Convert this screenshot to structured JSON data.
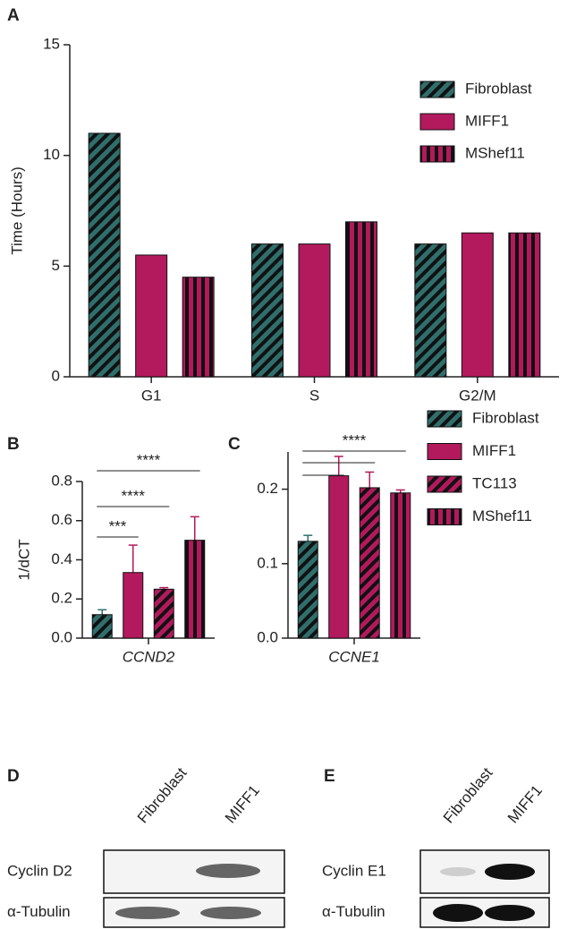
{
  "chart_data": [
    {
      "type": "bar",
      "panel": "A",
      "ylabel": "Time (Hours)",
      "categories": [
        "G1",
        "S",
        "G2/M"
      ],
      "series": [
        {
          "name": "Fibroblast",
          "color": "#2f6f6d",
          "hatch": "diagonal",
          "values": [
            11,
            6,
            6
          ]
        },
        {
          "name": "MIFF1",
          "color": "#b3195d",
          "hatch": "none",
          "values": [
            5.5,
            6,
            6.5
          ]
        },
        {
          "name": "MShef11",
          "color": "#b3195d",
          "hatch": "vertical",
          "values": [
            4.5,
            7,
            6.5
          ]
        }
      ],
      "ylim": [
        0,
        15
      ],
      "yticks": [
        0,
        5,
        10,
        15
      ],
      "legend": true
    },
    {
      "type": "bar",
      "panel": "B",
      "ylabel": "1/dCT",
      "categories": [
        "CCND2"
      ],
      "series": [
        {
          "name": "Fibroblast",
          "color": "#2f6f6d",
          "hatch": "diagonal",
          "values": [
            0.12
          ],
          "errors": [
            0.025
          ]
        },
        {
          "name": "MIFF1",
          "color": "#b3195d",
          "hatch": "none",
          "values": [
            0.335
          ],
          "errors": [
            0.14
          ]
        },
        {
          "name": "TC113",
          "color": "#b3195d",
          "hatch": "diagonal",
          "values": [
            0.25
          ],
          "errors": [
            0.008
          ]
        },
        {
          "name": "MShef11",
          "color": "#b3195d",
          "hatch": "vertical",
          "values": [
            0.5
          ],
          "errors": [
            0.12
          ]
        }
      ],
      "ylim": [
        0,
        0.8
      ],
      "yticks": [
        {
          "value": 0,
          "label": "0.0"
        },
        0.2,
        0.4,
        0.6,
        0.8
      ],
      "significance": [
        "***",
        "****",
        "****"
      ],
      "legend": true
    },
    {
      "type": "bar",
      "panel": "C",
      "categories": [
        "CCNE1"
      ],
      "series": [
        {
          "color": "#2f6f6d",
          "hatch": "diagonal",
          "values": [
            0.13
          ],
          "errors": [
            0.008
          ]
        },
        {
          "color": "#b3195d",
          "hatch": "none",
          "values": [
            0.218
          ],
          "errors": [
            0.026
          ]
        },
        {
          "color": "#b3195d",
          "hatch": "diagonal",
          "values": [
            0.202
          ],
          "errors": [
            0.021
          ]
        },
        {
          "color": "#b3195d",
          "hatch": "vertical",
          "values": [
            0.195
          ],
          "errors": [
            0.004
          ]
        }
      ],
      "ylim": [
        0,
        0.25
      ],
      "yticks": [
        {
          "value": 0,
          "label": "0.0"
        },
        0.1,
        0.2
      ],
      "significance": [
        "****"
      ]
    }
  ],
  "blots": [
    {
      "panel": "D",
      "lanes": [
        "Fibroblast",
        "MIFF1"
      ],
      "rows": [
        "Cyclin D2",
        "α-Tubulin"
      ]
    },
    {
      "panel": "E",
      "lanes": [
        "Fibroblast",
        "MIFF1"
      ],
      "rows": [
        "Cyclin E1",
        "α-Tubulin"
      ]
    }
  ]
}
